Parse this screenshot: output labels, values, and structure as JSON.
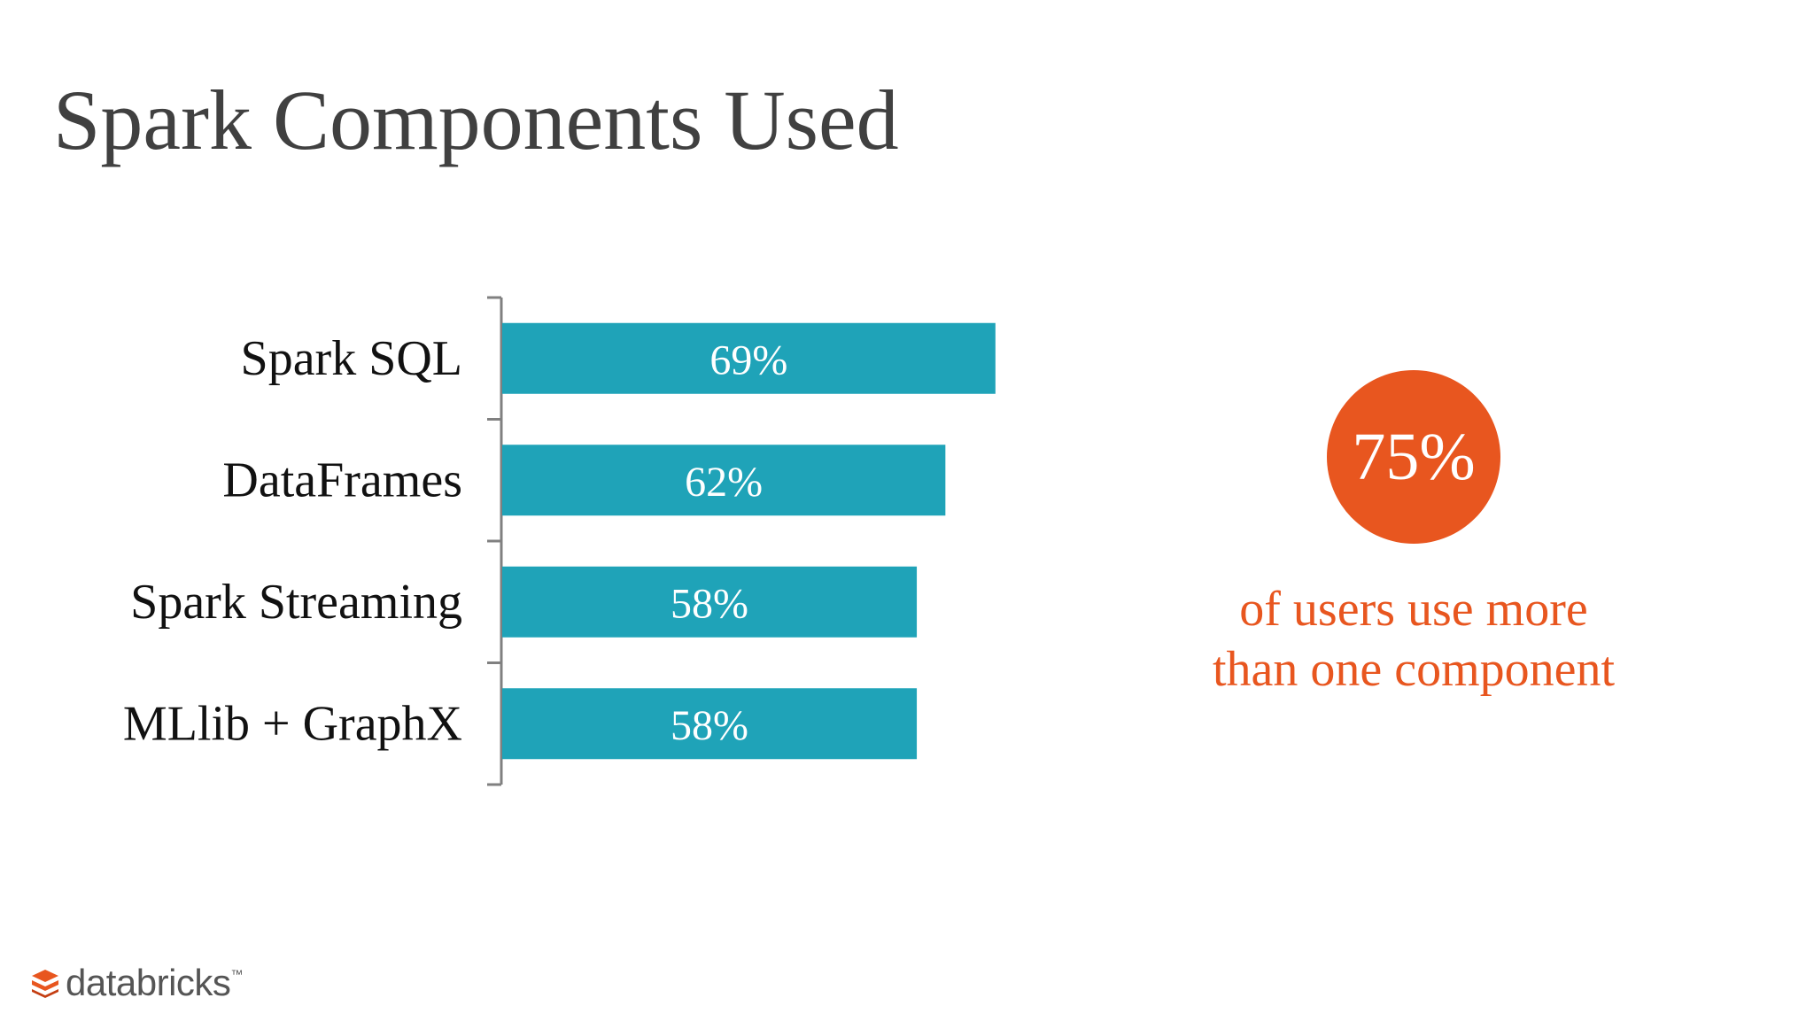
{
  "slide": {
    "title": "Spark Components Used"
  },
  "chart_data": {
    "type": "bar",
    "orientation": "horizontal",
    "categories": [
      "Spark SQL",
      "DataFrames",
      "Spark Streaming",
      "MLlib + GraphX"
    ],
    "values": [
      69,
      62,
      58,
      58
    ],
    "data_labels": [
      "69%",
      "62%",
      "58%",
      "58%"
    ],
    "xlim": [
      0,
      100
    ],
    "bar_color": "#1FA3B8",
    "label_color": "#ffffff",
    "grid": false,
    "legend": "none"
  },
  "stat": {
    "value": "75%",
    "caption_line1": "of users use more",
    "caption_line2": "than one component",
    "color": "#E8561F"
  },
  "brand": {
    "name": "databricks",
    "icon": "databricks-logo-icon",
    "color": "#E8561F"
  }
}
